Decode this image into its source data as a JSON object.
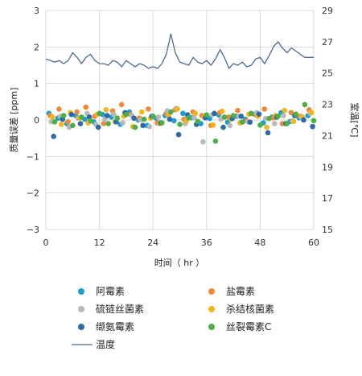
{
  "chart_data": {
    "type": "scatter",
    "xlabel": "时间（ hr ）",
    "ylabel_left": "质量误差 [ppm]",
    "ylabel_right": "室温[℃]",
    "xlim": [
      0,
      60
    ],
    "ylim_left": [
      -3,
      3
    ],
    "ylim_right": [
      15,
      29
    ],
    "x_ticks": [
      "0",
      "12",
      "24",
      "36",
      "48",
      "60"
    ],
    "y_left_ticks": [
      "3",
      "2",
      "1",
      "0",
      "−1",
      "−2",
      "−3"
    ],
    "y_right_ticks": [
      "29",
      "27",
      "25",
      "23",
      "21",
      "19",
      "17",
      "15"
    ],
    "grid": true,
    "colors": {
      "阿霉素": "#1aa0d6",
      "盐霉素": "#f0883a",
      "硫链丝菌素": "#b9b9b9",
      "杀结核菌素": "#f5b51a",
      "缬氨霉素": "#2c6aa8",
      "丝裂霉素C": "#4caf45",
      "温度": "#4a6a8e"
    },
    "series": [
      {
        "name": "阿霉素",
        "type": "scatter",
        "values": [
          0.18,
          0.05,
          -0.1,
          0.12,
          0.02,
          -0.05,
          0.15,
          0.08,
          -0.12,
          0.22,
          0.0,
          -0.15,
          0.05,
          0.12,
          -0.02,
          0.18,
          0.06,
          -0.1,
          0.04,
          0.14,
          -0.06,
          0.1,
          0.02,
          0.16,
          -0.08,
          0.08,
          0.2,
          -0.04,
          0.06,
          0.12
        ]
      },
      {
        "name": "盐霉素",
        "type": "scatter",
        "values": [
          0.12,
          0.3,
          -0.05,
          0.22,
          0.35,
          0.1,
          -0.1,
          0.25,
          0.42,
          0.15,
          0.05,
          0.3,
          -0.08,
          0.18,
          0.28,
          0.02,
          0.22,
          0.12,
          -0.15,
          0.2,
          0.08,
          0.26,
          -0.02,
          0.15,
          0.3,
          0.06,
          -0.1,
          0.2,
          0.1,
          0.28
        ]
      },
      {
        "name": "硫链丝菌素",
        "type": "scatter",
        "values": [
          -0.05,
          0.1,
          -0.2,
          0.05,
          0.18,
          -0.12,
          0.02,
          0.15,
          -0.08,
          0.12,
          0.0,
          -0.18,
          0.08,
          0.25,
          0.32,
          -0.1,
          0.06,
          -0.6,
          0.14,
          0.02,
          -0.15,
          0.1,
          -0.05,
          0.2,
          0.04,
          -0.1,
          0.12,
          -0.02,
          0.08,
          0.18
        ]
      },
      {
        "name": "杀结核菌素",
        "type": "scatter",
        "values": [
          0.08,
          -0.12,
          0.2,
          0.05,
          -0.08,
          0.15,
          0.28,
          -0.05,
          0.1,
          -0.18,
          0.22,
          0.05,
          -0.1,
          0.12,
          0.3,
          -0.02,
          0.18,
          0.08,
          -0.14,
          0.24,
          0.02,
          -0.08,
          0.16,
          0.1,
          -0.2,
          0.12,
          0.26,
          -0.04,
          0.08,
          0.2
        ]
      },
      {
        "name": "缬氨霉素",
        "type": "scatter",
        "values": [
          -0.45,
          0.02,
          0.15,
          -0.1,
          0.08,
          -0.2,
          0.12,
          -0.05,
          0.2,
          0.05,
          -0.15,
          0.1,
          -0.08,
          0.02,
          -0.4,
          0.14,
          -0.12,
          0.06,
          0.18,
          -0.2,
          0.04,
          0.1,
          -0.06,
          0.16,
          -0.35,
          0.08,
          -0.1,
          0.12,
          0.0,
          -0.18
        ]
      },
      {
        "name": "丝裂霉素C",
        "type": "scatter",
        "values": [
          -0.05,
          0.12,
          -0.15,
          0.08,
          -0.02,
          0.18,
          -0.1,
          0.05,
          0.15,
          -0.2,
          0.02,
          0.1,
          -0.08,
          0.22,
          -0.12,
          0.06,
          -0.04,
          0.14,
          -0.58,
          0.08,
          0.12,
          -0.06,
          0.18,
          -0.14,
          0.04,
          0.1,
          -0.1,
          0.16,
          0.42,
          -0.02
        ]
      },
      {
        "name": "温度",
        "type": "line",
        "axis": "right",
        "x": [
          0,
          1,
          2,
          3,
          4,
          5,
          6,
          7,
          8,
          9,
          10,
          11,
          12,
          13,
          14,
          15,
          16,
          17,
          18,
          19,
          20,
          21,
          22,
          23,
          24,
          25,
          26,
          27,
          28,
          29,
          30,
          31,
          32,
          33,
          34,
          35,
          36,
          37,
          38,
          39,
          40,
          41,
          42,
          43,
          44,
          45,
          46,
          47,
          48,
          49,
          50,
          51,
          52,
          53,
          54,
          55,
          56,
          57,
          58,
          59,
          60
        ],
        "values": [
          25.9,
          25.8,
          25.7,
          25.8,
          25.6,
          25.8,
          26.3,
          26.0,
          25.6,
          26.0,
          26.2,
          25.8,
          25.6,
          25.6,
          25.5,
          25.8,
          25.7,
          25.4,
          25.8,
          25.6,
          25.4,
          25.6,
          25.5,
          25.3,
          25.4,
          25.3,
          25.6,
          26.2,
          27.5,
          26.3,
          25.7,
          25.6,
          25.5,
          26.0,
          25.7,
          25.6,
          25.8,
          25.5,
          25.9,
          26.5,
          26.0,
          25.3,
          25.6,
          25.5,
          25.7,
          25.4,
          25.5,
          25.9,
          26.0,
          25.6,
          26.1,
          26.7,
          27.0,
          26.6,
          26.3,
          26.6,
          26.4,
          26.2,
          26.0,
          26.0,
          26.0
        ]
      }
    ]
  },
  "legend": [
    {
      "label": "阿霉素",
      "color": "#1aa0d6",
      "kind": "dot"
    },
    {
      "label": "盐霉素",
      "color": "#f0883a",
      "kind": "dot"
    },
    {
      "label": "硫链丝菌素",
      "color": "#b9b9b9",
      "kind": "dot"
    },
    {
      "label": "杀结核菌素",
      "color": "#f5b51a",
      "kind": "dot"
    },
    {
      "label": "缬氨霉素",
      "color": "#2c6aa8",
      "kind": "dot"
    },
    {
      "label": "丝裂霉素C",
      "color": "#4caf45",
      "kind": "dot"
    },
    {
      "label": "温度",
      "color": "#4a6a8e",
      "kind": "line"
    }
  ]
}
